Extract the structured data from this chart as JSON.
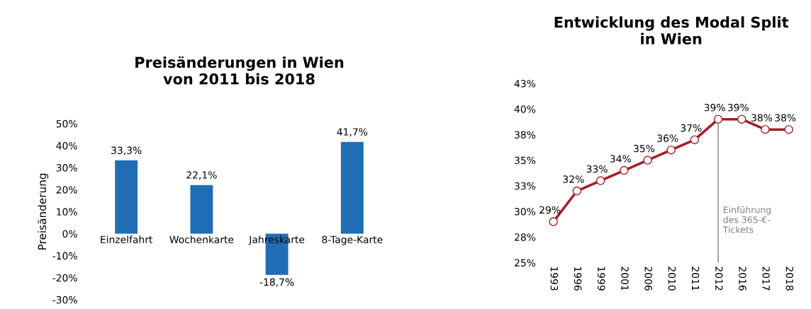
{
  "chart_data": [
    {
      "type": "bar",
      "title": "Preisänderungen in Wien\nvon 2011 bis 2018",
      "ylabel": "Preisänderung",
      "categories": [
        "Einzelfahrt",
        "Wochenkarte",
        "Jahreskarte",
        "8-Tage-Karte"
      ],
      "values": [
        33.3,
        22.1,
        -18.7,
        41.7
      ],
      "value_labels": [
        "33,3%",
        "22,1%",
        "-18,7%",
        "41,7%"
      ],
      "color": "#1f6db5",
      "ylim": [
        -30,
        50
      ],
      "yticks": [
        {
          "value": -30,
          "label": "-30%"
        },
        {
          "value": -20,
          "label": "-20%"
        },
        {
          "value": -10,
          "label": "-10%"
        },
        {
          "value": 0,
          "label": "0%"
        },
        {
          "value": 10,
          "label": "10%"
        },
        {
          "value": 20,
          "label": "20%"
        },
        {
          "value": 30,
          "label": "30%"
        },
        {
          "value": 40,
          "label": "40%"
        },
        {
          "value": 50,
          "label": "50%"
        }
      ],
      "grid": false
    },
    {
      "type": "line",
      "title": "Entwicklung des Modal Split\nin Wien",
      "categories": [
        "1993",
        "1996",
        "1999",
        "2001",
        "2006",
        "2010",
        "2011",
        "2012",
        "2016",
        "2017",
        "2018"
      ],
      "series": [
        {
          "color": "#a51c24",
          "values": [
            29,
            32,
            33,
            34,
            35,
            36,
            37,
            39,
            39,
            38,
            38
          ],
          "value_labels": [
            "29%",
            "32%",
            "33%",
            "34%",
            "35%",
            "36%",
            "37%",
            "39%",
            "39%",
            "38%",
            "38%"
          ]
        }
      ],
      "marker": "circle",
      "line_style": "solid",
      "ylim": [
        25,
        42.5
      ],
      "yticks": [
        {
          "value": 25,
          "label": "25%"
        },
        {
          "value": 27.5,
          "label": "28%"
        },
        {
          "value": 30,
          "label": "30%"
        },
        {
          "value": 32.5,
          "label": "33%"
        },
        {
          "value": 35,
          "label": "35%"
        },
        {
          "value": 37.5,
          "label": "38%"
        },
        {
          "value": 40,
          "label": "40%"
        },
        {
          "value": 42.5,
          "label": "43%"
        }
      ],
      "ref_lines": [
        {
          "axis": "x",
          "value": "2012",
          "label": "Einführung\ndes 365-€-\nTickets",
          "color": "#808080"
        }
      ],
      "grid": false
    }
  ]
}
